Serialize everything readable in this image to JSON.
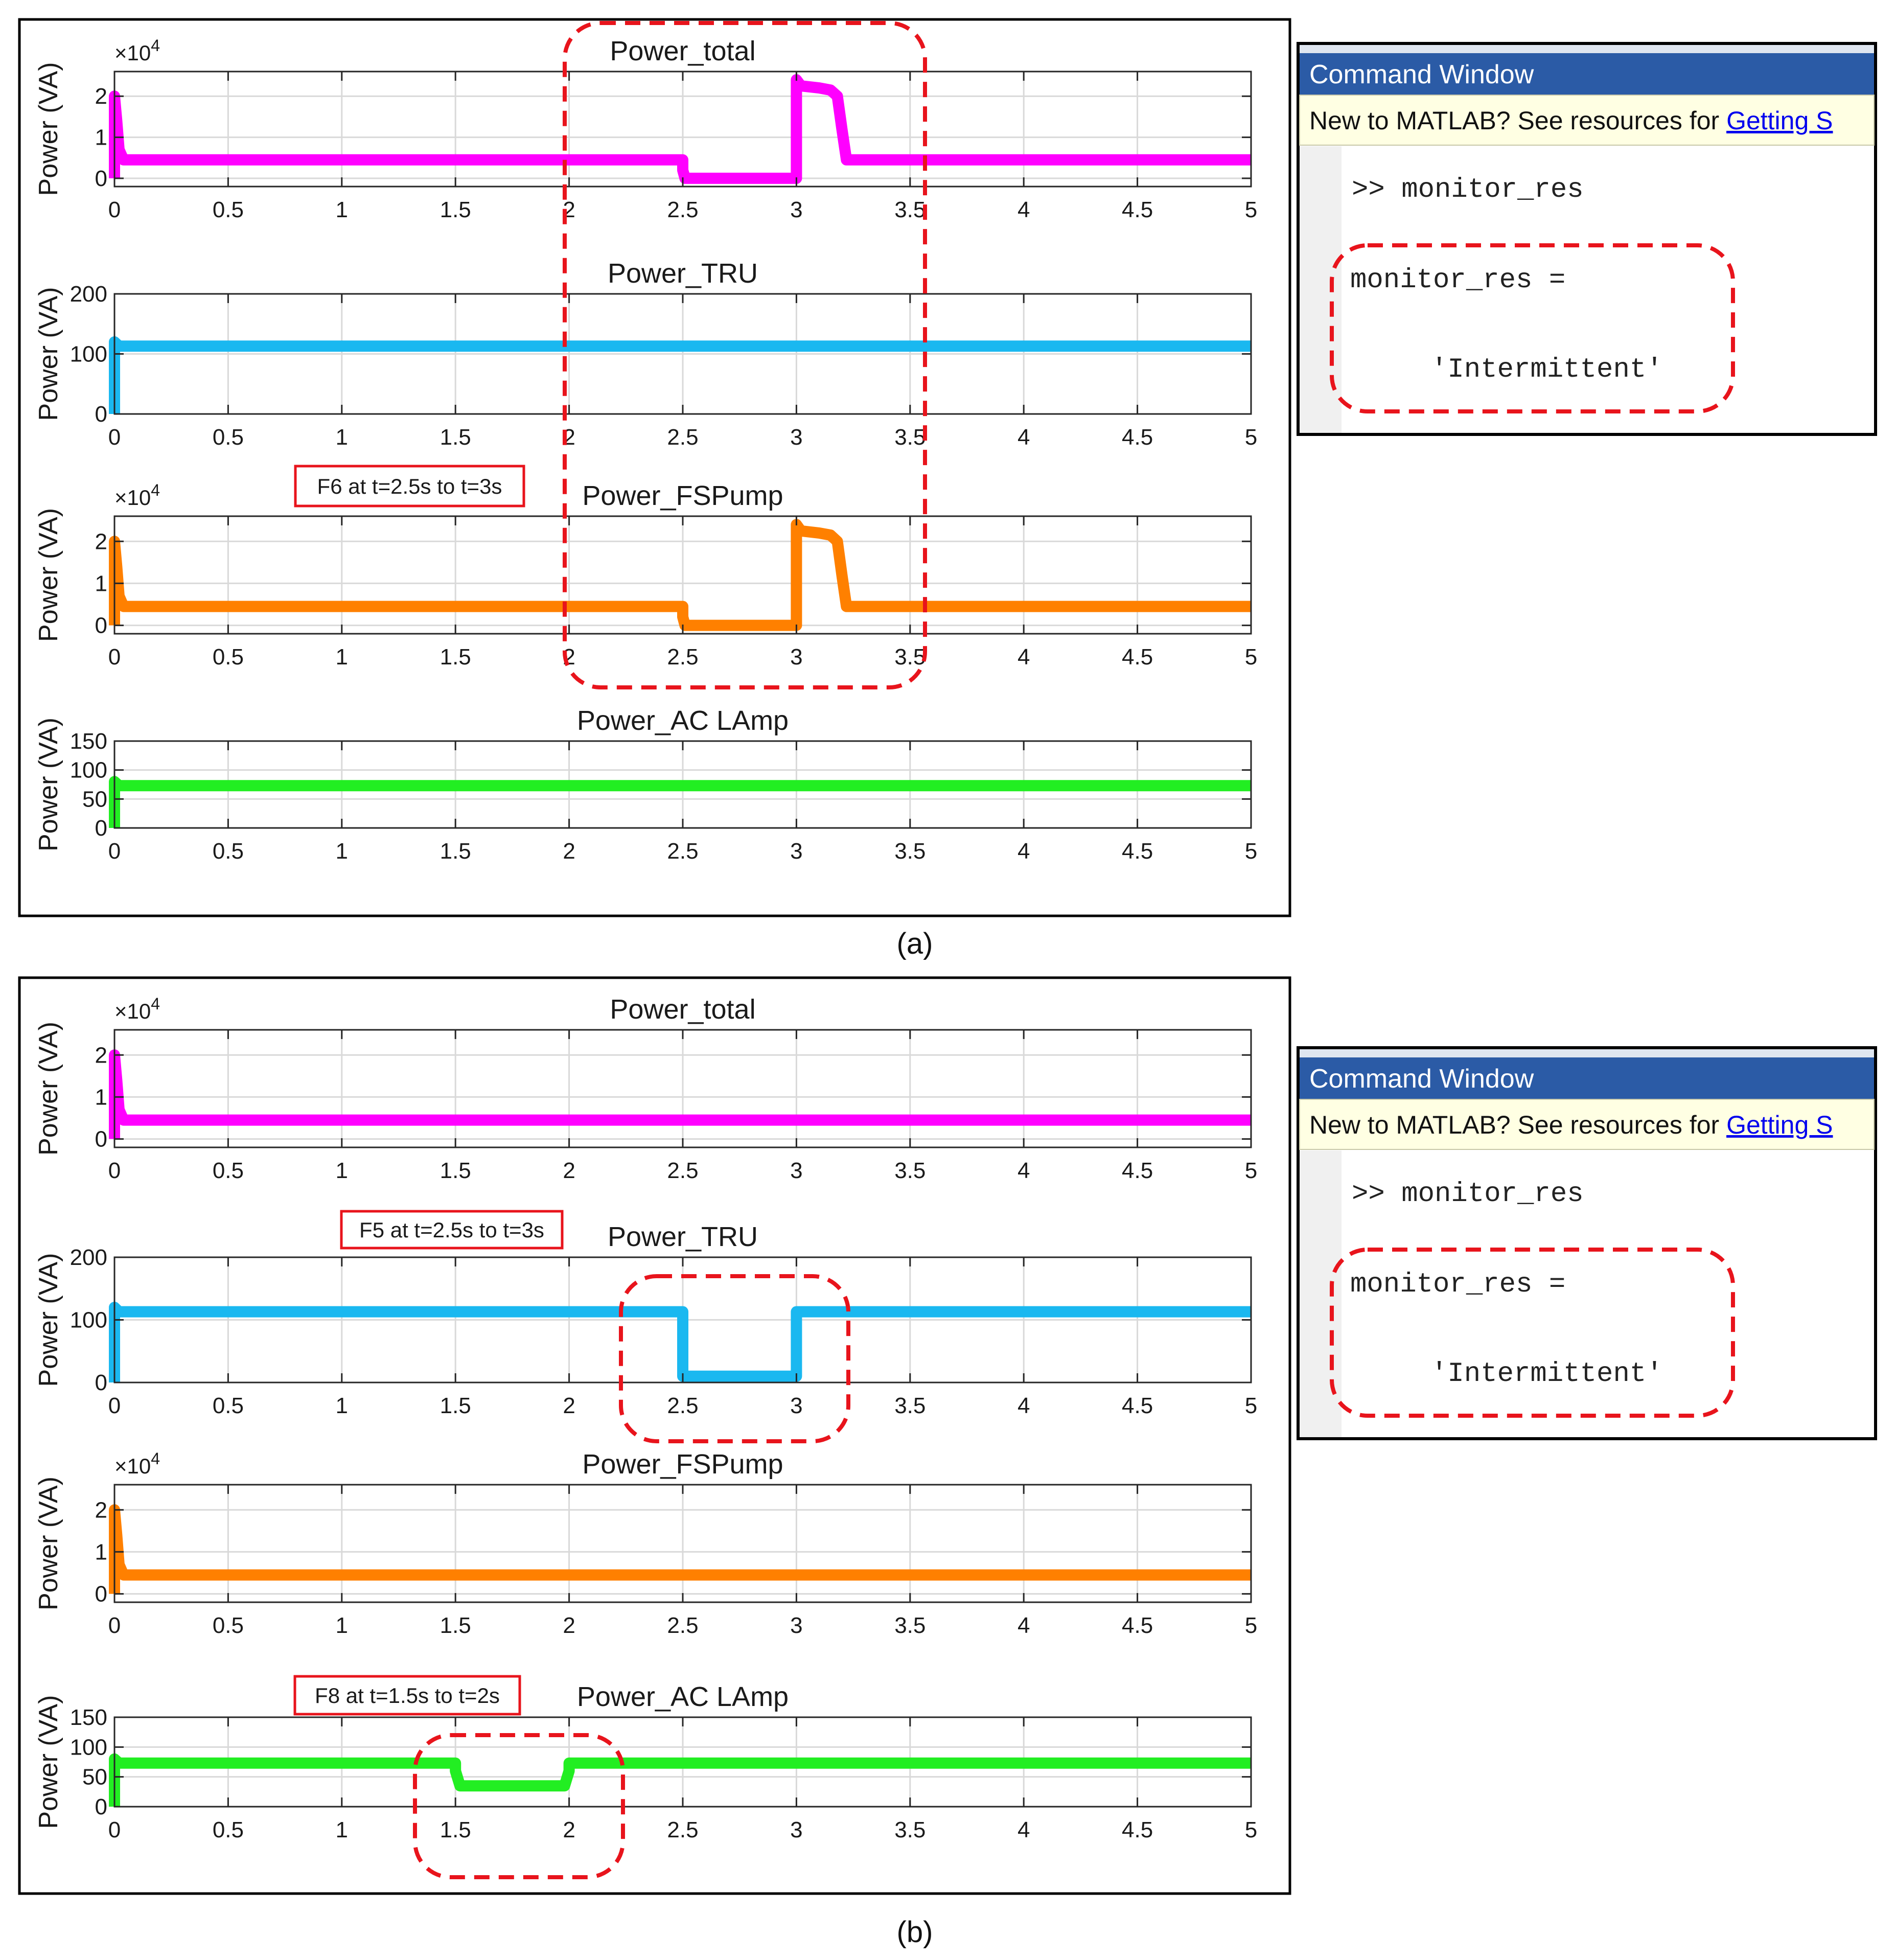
{
  "chart_data": [
    {
      "panel": "a",
      "caption": "(a)",
      "fault_label": "F6 at t=2.5s to t=3s",
      "subplots": [
        {
          "type": "line",
          "title": "Power_total",
          "ylabel": "Power (VA)",
          "exponent_base": "×10",
          "exponent_power": "4",
          "xlim": [
            0,
            5
          ],
          "ylim": [
            -0.2,
            2.6
          ],
          "yticks": [
            "0",
            "1",
            "2"
          ],
          "ytick_values": [
            0,
            1,
            2
          ],
          "xticks": [
            "0",
            "0.5",
            "1",
            "1.5",
            "2",
            "2.5",
            "3",
            "3.5",
            "4",
            "4.5",
            "5"
          ],
          "xtick_values": [
            0,
            0.5,
            1,
            1.5,
            2,
            2.5,
            3,
            3.5,
            4,
            4.5,
            5
          ],
          "grid": true,
          "color": "#ff00ff",
          "x": [
            0,
            0,
            0.01,
            0.02,
            0.04,
            2.5,
            2.5,
            2.51,
            3.0,
            3.0,
            3.02,
            3.1,
            3.15,
            3.18,
            3.2,
            3.22,
            3.25,
            5
          ],
          "y": [
            0,
            2.0,
            1.4,
            0.7,
            0.45,
            0.45,
            0.2,
            0.0,
            0.0,
            2.4,
            2.25,
            2.2,
            2.15,
            2.0,
            1.2,
            0.45,
            0.45,
            0.45
          ]
        },
        {
          "type": "line",
          "title": "Power_TRU",
          "ylabel": "Power (VA)",
          "xlim": [
            0,
            5
          ],
          "ylim": [
            0,
            200
          ],
          "yticks": [
            "0",
            "100",
            "200"
          ],
          "ytick_values": [
            0,
            100,
            200
          ],
          "xticks": [
            "0",
            "0.5",
            "1",
            "1.5",
            "2",
            "2.5",
            "3",
            "3.5",
            "4",
            "4.5",
            "5"
          ],
          "xtick_values": [
            0,
            0.5,
            1,
            1.5,
            2,
            2.5,
            3,
            3.5,
            4,
            4.5,
            5
          ],
          "grid": true,
          "color": "#1ab8f0",
          "x": [
            0,
            0,
            0.02,
            5
          ],
          "y": [
            0,
            120,
            113,
            113
          ]
        },
        {
          "type": "line",
          "title": "Power_FSPump",
          "ylabel": "Power (VA)",
          "exponent_base": "×10",
          "exponent_power": "4",
          "xlim": [
            0,
            5
          ],
          "ylim": [
            -0.2,
            2.6
          ],
          "yticks": [
            "0",
            "1",
            "2"
          ],
          "ytick_values": [
            0,
            1,
            2
          ],
          "xticks": [
            "0",
            "0.5",
            "1",
            "1.5",
            "2",
            "2.5",
            "3",
            "3.5",
            "4",
            "4.5",
            "5"
          ],
          "xtick_values": [
            0,
            0.5,
            1,
            1.5,
            2,
            2.5,
            3,
            3.5,
            4,
            4.5,
            5
          ],
          "grid": true,
          "color": "#ff8000",
          "x": [
            0,
            0,
            0.01,
            0.02,
            0.04,
            2.5,
            2.5,
            2.51,
            3.0,
            3.0,
            3.02,
            3.1,
            3.15,
            3.18,
            3.2,
            3.22,
            3.25,
            5
          ],
          "y": [
            0,
            2.0,
            1.4,
            0.7,
            0.45,
            0.45,
            0.2,
            0.0,
            0.0,
            2.4,
            2.25,
            2.2,
            2.15,
            2.0,
            1.2,
            0.45,
            0.45,
            0.45
          ]
        },
        {
          "type": "line",
          "title": "Power_AC LAmp",
          "ylabel": "Power (VA)",
          "xlim": [
            0,
            5
          ],
          "ylim": [
            0,
            150
          ],
          "yticks": [
            "0",
            "50",
            "100",
            "150"
          ],
          "ytick_values": [
            0,
            50,
            100,
            150
          ],
          "xticks": [
            "0",
            "0.5",
            "1",
            "1.5",
            "2",
            "2.5",
            "3",
            "3.5",
            "4",
            "4.5",
            "5"
          ],
          "xtick_values": [
            0,
            0.5,
            1,
            1.5,
            2,
            2.5,
            3,
            3.5,
            4,
            4.5,
            5
          ],
          "grid": true,
          "color": "#22ee22",
          "x": [
            0,
            0,
            0.02,
            5
          ],
          "y": [
            0,
            80,
            73,
            73
          ]
        }
      ]
    },
    {
      "panel": "b",
      "caption": "(b)",
      "fault_label_tru": "F5 at t=2.5s to t=3s",
      "fault_label_lamp": "F8 at t=1.5s to t=2s",
      "subplots": [
        {
          "type": "line",
          "title": "Power_total",
          "ylabel": "Power (VA)",
          "exponent_base": "×10",
          "exponent_power": "4",
          "xlim": [
            0,
            5
          ],
          "ylim": [
            -0.2,
            2.6
          ],
          "yticks": [
            "0",
            "1",
            "2"
          ],
          "ytick_values": [
            0,
            1,
            2
          ],
          "xticks": [
            "0",
            "0.5",
            "1",
            "1.5",
            "2",
            "2.5",
            "3",
            "3.5",
            "4",
            "4.5",
            "5"
          ],
          "xtick_values": [
            0,
            0.5,
            1,
            1.5,
            2,
            2.5,
            3,
            3.5,
            4,
            4.5,
            5
          ],
          "grid": true,
          "color": "#ff00ff",
          "x": [
            0,
            0,
            0.01,
            0.02,
            0.04,
            5
          ],
          "y": [
            0,
            2.0,
            1.4,
            0.7,
            0.45,
            0.45
          ]
        },
        {
          "type": "line",
          "title": "Power_TRU",
          "ylabel": "Power (VA)",
          "xlim": [
            0,
            5
          ],
          "ylim": [
            0,
            200
          ],
          "yticks": [
            "0",
            "100",
            "200"
          ],
          "ytick_values": [
            0,
            100,
            200
          ],
          "xticks": [
            "0",
            "0.5",
            "1",
            "1.5",
            "2",
            "2.5",
            "3",
            "3.5",
            "4",
            "4.5",
            "5"
          ],
          "xtick_values": [
            0,
            0.5,
            1,
            1.5,
            2,
            2.5,
            3,
            3.5,
            4,
            4.5,
            5
          ],
          "grid": true,
          "color": "#1ab8f0",
          "x": [
            0,
            0,
            0.02,
            2.5,
            2.5,
            3.0,
            3.0,
            5
          ],
          "y": [
            0,
            120,
            113,
            113,
            10,
            10,
            113,
            113
          ]
        },
        {
          "type": "line",
          "title": "Power_FSPump",
          "ylabel": "Power (VA)",
          "exponent_base": "×10",
          "exponent_power": "4",
          "xlim": [
            0,
            5
          ],
          "ylim": [
            -0.2,
            2.6
          ],
          "yticks": [
            "0",
            "1",
            "2"
          ],
          "ytick_values": [
            0,
            1,
            2
          ],
          "xticks": [
            "0",
            "0.5",
            "1",
            "1.5",
            "2",
            "2.5",
            "3",
            "3.5",
            "4",
            "4.5",
            "5"
          ],
          "xtick_values": [
            0,
            0.5,
            1,
            1.5,
            2,
            2.5,
            3,
            3.5,
            4,
            4.5,
            5
          ],
          "grid": true,
          "color": "#ff8000",
          "x": [
            0,
            0,
            0.01,
            0.02,
            0.04,
            5
          ],
          "y": [
            0,
            2.0,
            1.4,
            0.7,
            0.45,
            0.45
          ]
        },
        {
          "type": "line",
          "title": "Power_AC LAmp",
          "ylabel": "Power (VA)",
          "xlim": [
            0,
            5
          ],
          "ylim": [
            0,
            150
          ],
          "yticks": [
            "0",
            "50",
            "100",
            "150"
          ],
          "ytick_values": [
            0,
            50,
            100,
            150
          ],
          "xticks": [
            "0",
            "0.5",
            "1",
            "1.5",
            "2",
            "2.5",
            "3",
            "3.5",
            "4",
            "4.5",
            "5"
          ],
          "xtick_values": [
            0,
            0.5,
            1,
            1.5,
            2,
            2.5,
            3,
            3.5,
            4,
            4.5,
            5
          ],
          "grid": true,
          "color": "#22ee22",
          "x": [
            0,
            0,
            0.02,
            1.5,
            1.5,
            1.52,
            1.98,
            2.0,
            2.0,
            5
          ],
          "y": [
            0,
            80,
            73,
            73,
            60,
            35,
            35,
            60,
            73,
            73
          ]
        }
      ]
    }
  ],
  "command_windows": [
    {
      "title": "Command Window",
      "notice_prefix": "New to MATLAB? See resources for ",
      "notice_link": "Getting S",
      "prompt": ">> monitor_res",
      "result_lhs": "monitor_res =",
      "result_value": "'Intermittent'"
    },
    {
      "title": "Command Window",
      "notice_prefix": "New to MATLAB? See resources for ",
      "notice_link": "Getting S",
      "prompt": ">> monitor_res",
      "result_lhs": "monitor_res =",
      "result_value": "'Intermittent'"
    }
  ],
  "colors": {
    "highlight": "#e8141c",
    "cw_title_bar": "#2b5ba6",
    "cw_notice_bg": "#ffffe3",
    "link": "#0000ee",
    "grid": "#d9d9d9"
  }
}
